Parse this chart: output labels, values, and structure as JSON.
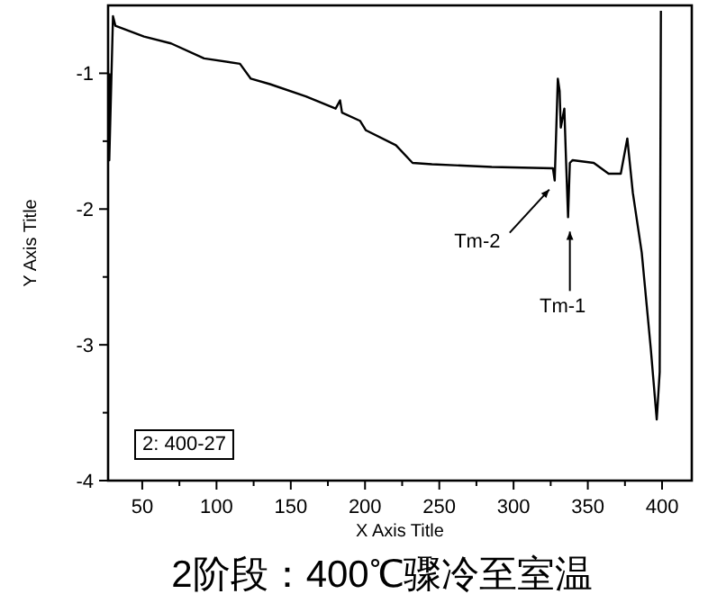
{
  "chart_data": {
    "type": "line",
    "title": "2阶段：400℃骤冷至室温",
    "xlabel": "X Axis Title",
    "ylabel": "Y Axis Title",
    "xlim": [
      27,
      420
    ],
    "ylim": [
      -4,
      -0.5
    ],
    "xticks": [
      50,
      {
        "value": 75,
        "label": null
      },
      100,
      {
        "value": 125,
        "label": null
      },
      150,
      {
        "value": 175,
        "label": null
      },
      200,
      {
        "value": 225,
        "label": null
      },
      250,
      {
        "value": 275,
        "label": null
      },
      300,
      {
        "value": 325,
        "label": null
      },
      350,
      {
        "value": 375,
        "label": null
      },
      400
    ],
    "yticks": [
      -4,
      {
        "value": -3.5,
        "label": null
      },
      -3,
      {
        "value": -2.5,
        "label": null
      },
      -2,
      {
        "value": -1.5,
        "label": null
      },
      -1
    ],
    "grid": false,
    "series": [
      {
        "color": "#000000",
        "x": [
          27.8,
          27.8,
          30.3,
          31.9,
          51.2,
          69.4,
          91.6,
          115.8,
          123.1,
          136,
          160.2,
          180.2,
          183.2,
          184.5,
          196.6,
          200.6,
          220.8,
          232,
          245,
          285.3,
          326.5,
          327.7,
          329.8,
          331,
          331.8,
          334.2,
          335.4,
          336.7,
          337.9,
          339.8,
          354,
          364,
          372.2,
          376.6,
          380.3,
          386.3,
          392.4,
          396.4,
          398.4,
          399.2
        ],
        "values": [
          -1.0,
          -1.64,
          -0.58,
          -0.65,
          -0.73,
          -0.78,
          -0.89,
          -0.93,
          -1.04,
          -1.08,
          -1.17,
          -1.26,
          -1.2,
          -1.29,
          -1.35,
          -1.42,
          -1.53,
          -1.66,
          -1.67,
          -1.69,
          -1.7,
          -1.79,
          -1.04,
          -1.13,
          -1.4,
          -1.26,
          -1.66,
          -2.06,
          -1.66,
          -1.64,
          -1.66,
          -1.74,
          -1.74,
          -1.48,
          -1.88,
          -2.32,
          -3.03,
          -3.55,
          -3.2,
          -0.54
        ]
      }
    ],
    "annotations": [
      {
        "text": "Tm-2",
        "x": 327.7,
        "y": -1.79
      },
      {
        "text": "Tm-1",
        "x": 336.7,
        "y": -2.06
      },
      "2: 400-27"
    ]
  }
}
